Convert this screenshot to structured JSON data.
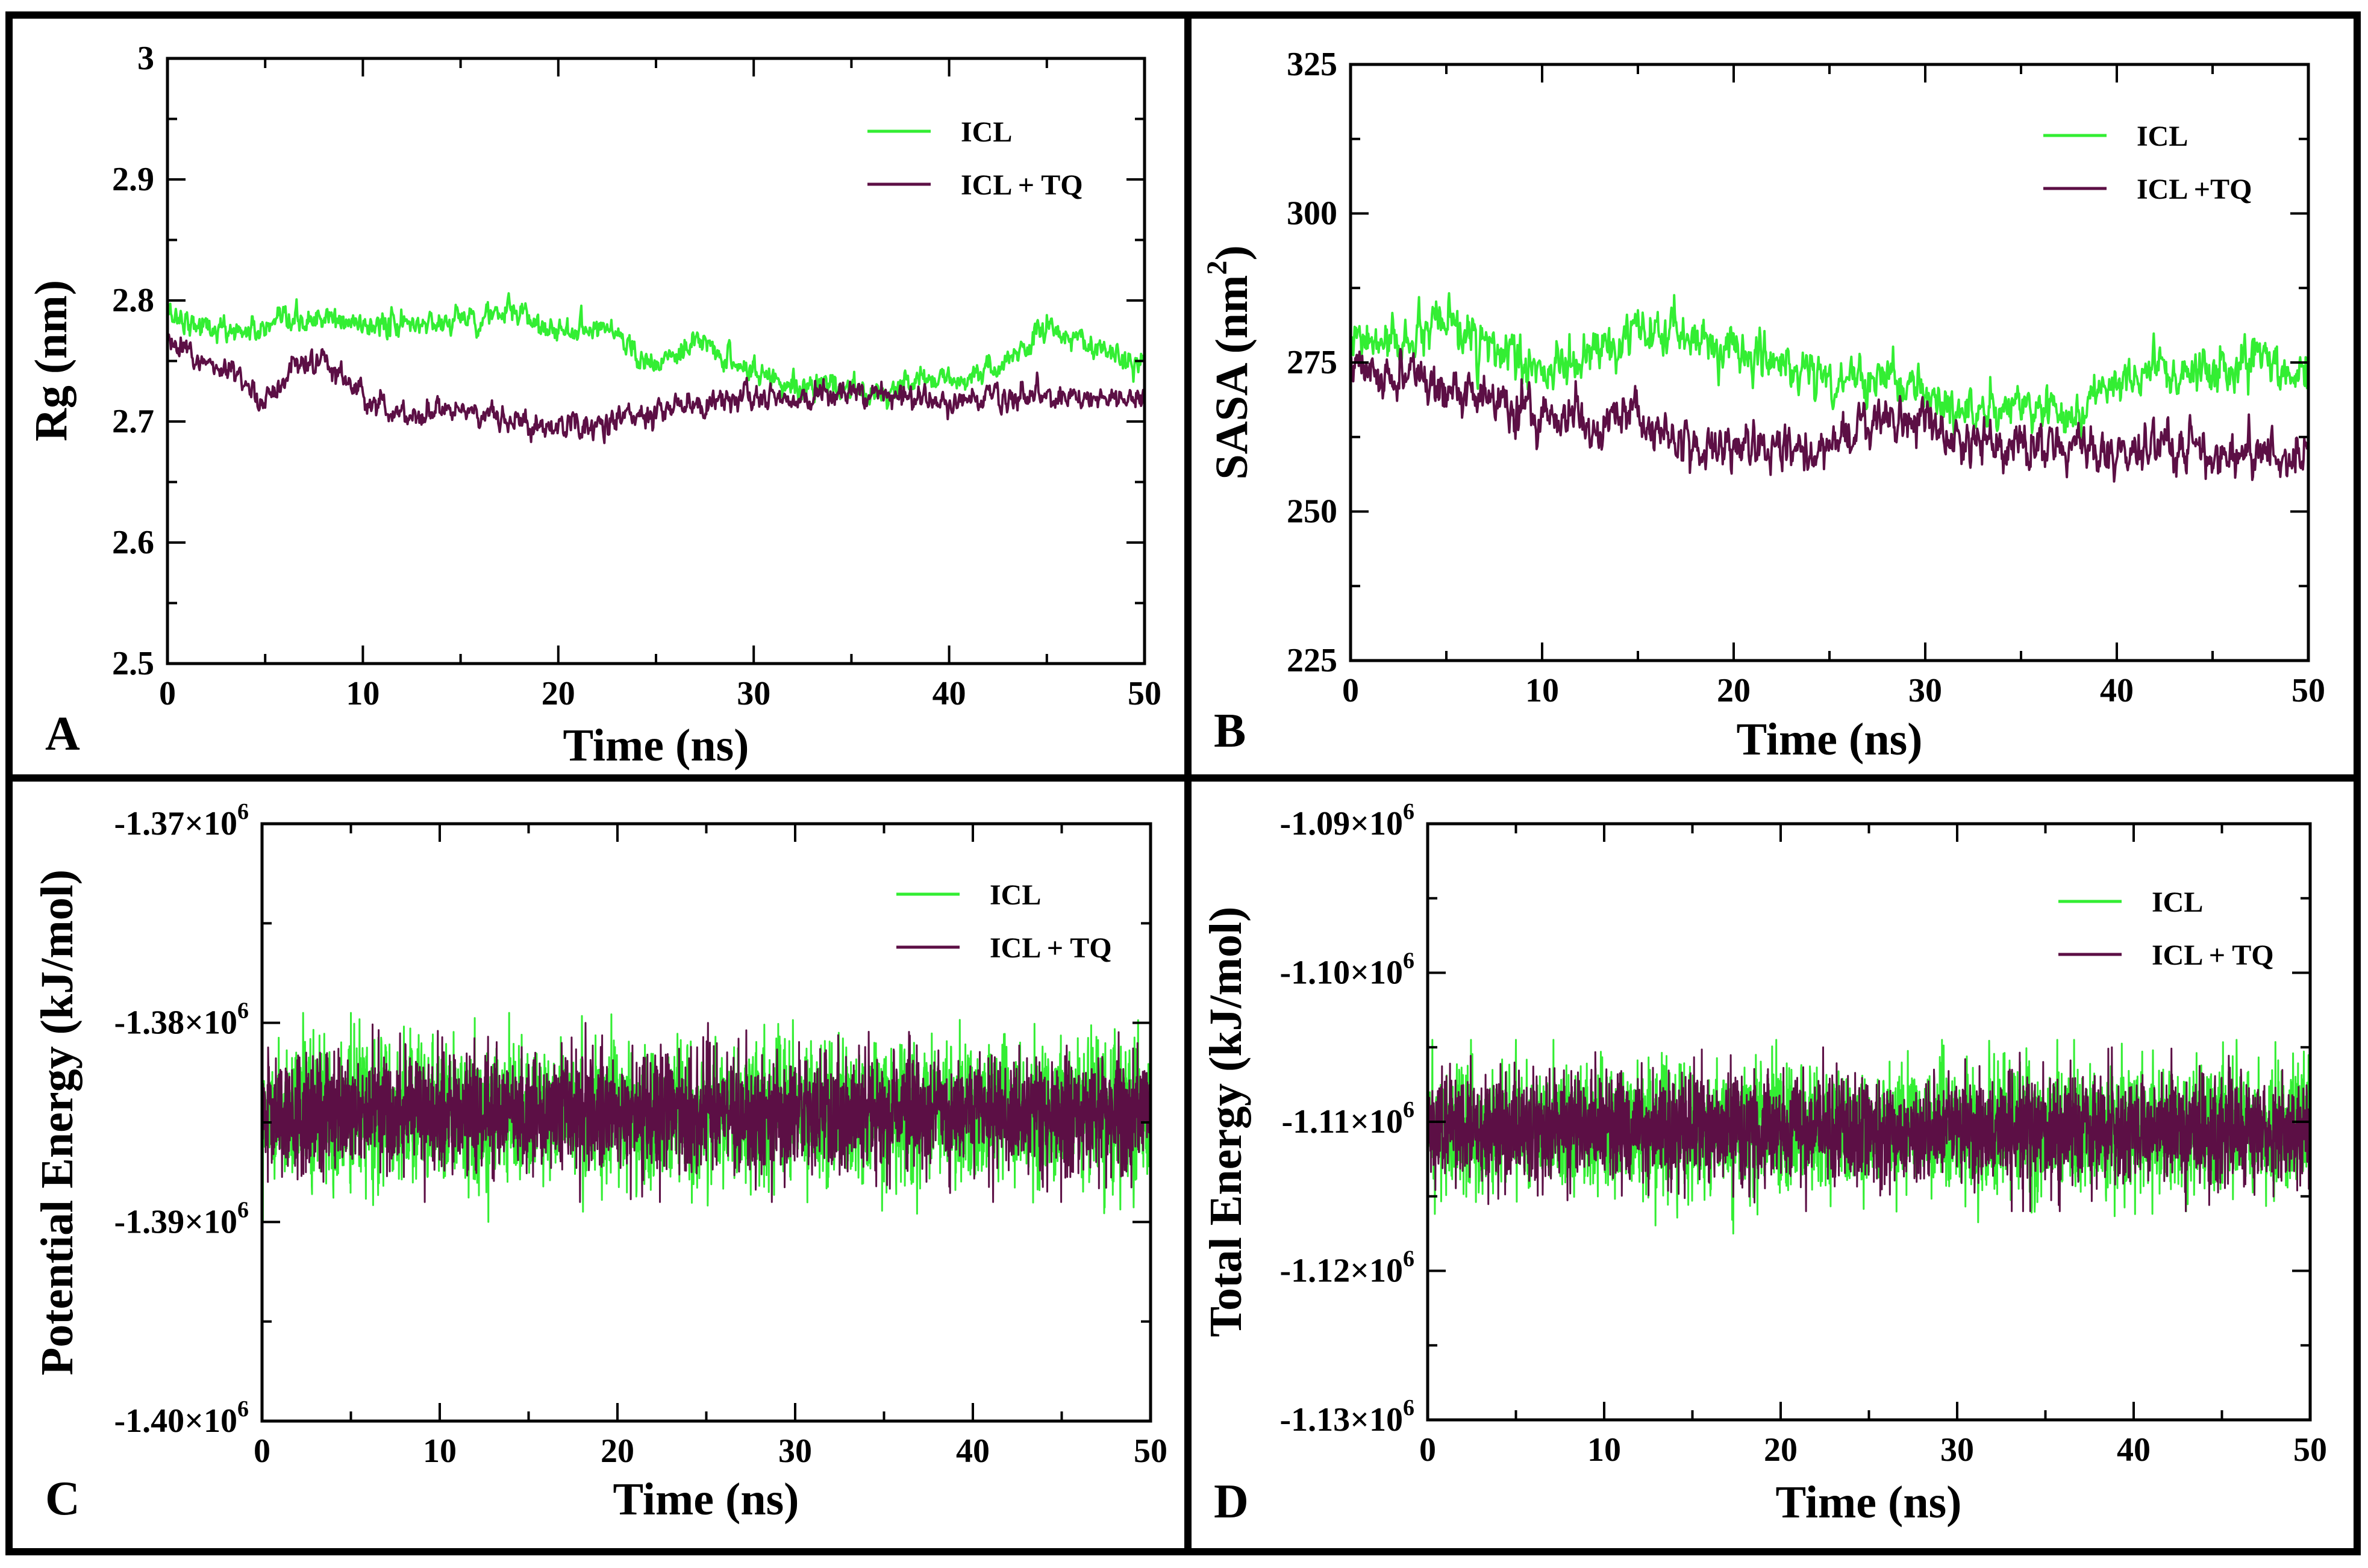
{
  "figure": {
    "colors": {
      "icl": "#33ee33",
      "icl_tq": "#5c0f45",
      "axes": "#000000"
    }
  },
  "chart_data": [
    {
      "panel": "A",
      "type": "line",
      "xlabel": "Time (ns)",
      "ylabel": "Rg (nm)",
      "xlim": [
        0,
        50
      ],
      "ylim": [
        2.5,
        3.0
      ],
      "x_ticks": [
        0,
        10,
        20,
        30,
        40,
        50
      ],
      "x_tick_labels": [
        "0",
        "10",
        "20",
        "30",
        "40",
        "50"
      ],
      "y_ticks": [
        2.5,
        2.6,
        2.7,
        2.8,
        2.9,
        3.0
      ],
      "y_tick_labels": [
        "2.5",
        "2.6",
        "2.7",
        "2.8",
        "2.9",
        "3"
      ],
      "legend": [
        "ICL",
        "ICL + TQ"
      ],
      "legend_position": "top-right",
      "series": [
        {
          "name": "ICL",
          "color": "#33ee33",
          "x": [
            0,
            2.5,
            5,
            7.5,
            10,
            12.5,
            15,
            17.5,
            20,
            22.5,
            25,
            27.5,
            30,
            32.5,
            35,
            37.5,
            40,
            42.5,
            45,
            47.5,
            50
          ],
          "y": [
            2.79,
            2.775,
            2.775,
            2.785,
            2.78,
            2.78,
            2.785,
            2.79,
            2.775,
            2.78,
            2.745,
            2.765,
            2.74,
            2.73,
            2.725,
            2.73,
            2.735,
            2.74,
            2.78,
            2.76,
            2.745
          ]
        },
        {
          "name": "ICL + TQ",
          "color": "#5c0f45",
          "x": [
            0,
            2.5,
            5,
            7.5,
            10,
            12.5,
            15,
            17.5,
            20,
            22.5,
            25,
            27.5,
            30,
            32.5,
            35,
            37.5,
            40,
            42.5,
            45,
            47.5,
            50
          ],
          "y": [
            2.765,
            2.745,
            2.72,
            2.755,
            2.72,
            2.705,
            2.71,
            2.7,
            2.695,
            2.7,
            2.71,
            2.715,
            2.72,
            2.72,
            2.725,
            2.72,
            2.715,
            2.72,
            2.72,
            2.72,
            2.72
          ]
        }
      ]
    },
    {
      "panel": "B",
      "type": "line",
      "xlabel": "Time (ns)",
      "ylabel": "SASA (nm",
      "ylabel_sup": "2",
      "ylabel_close": ")",
      "xlim": [
        0,
        50
      ],
      "ylim": [
        225,
        325
      ],
      "x_ticks": [
        0,
        10,
        20,
        30,
        40,
        50
      ],
      "x_tick_labels": [
        "0",
        "10",
        "20",
        "30",
        "40",
        "50"
      ],
      "y_ticks": [
        225,
        250,
        275,
        300,
        325
      ],
      "y_tick_labels": [
        "225",
        "250",
        "275",
        "300",
        "325"
      ],
      "legend": [
        "ICL",
        "ICL +TQ"
      ],
      "legend_position": "top-right",
      "series": [
        {
          "name": "ICL",
          "color": "#33ee33",
          "x": [
            0,
            2.5,
            5,
            7.5,
            10,
            12.5,
            15,
            17.5,
            20,
            22.5,
            25,
            27.5,
            30,
            32.5,
            35,
            37.5,
            40,
            42.5,
            45,
            47.5,
            50
          ],
          "y": [
            278,
            278,
            281,
            277,
            273,
            276,
            279,
            280,
            277,
            275,
            272,
            273,
            270,
            266,
            268,
            266,
            272,
            273,
            273,
            276,
            272
          ]
        },
        {
          "name": "ICL +TQ",
          "color": "#5c0f45",
          "x": [
            0,
            2.5,
            5,
            7.5,
            10,
            12.5,
            15,
            17.5,
            20,
            22.5,
            25,
            27.5,
            30,
            32.5,
            35,
            37.5,
            40,
            42.5,
            45,
            47.5,
            50
          ],
          "y": [
            275,
            272,
            272,
            268,
            266,
            265,
            266,
            261,
            260,
            261,
            260,
            265,
            265,
            260,
            261,
            262,
            260,
            261,
            260,
            260,
            259
          ]
        }
      ]
    },
    {
      "panel": "C",
      "type": "line",
      "xlabel": "Time (ns)",
      "ylabel": "Potential Energy (kJ/mol)",
      "xlim": [
        0,
        50
      ],
      "ylim": [
        -1400000,
        -1370000
      ],
      "x_ticks": [
        0,
        10,
        20,
        30,
        40,
        50
      ],
      "x_tick_labels": [
        "0",
        "10",
        "20",
        "30",
        "40",
        "50"
      ],
      "y_ticks": [
        -1400000,
        -1390000,
        -1380000,
        -1370000
      ],
      "y_tick_labels": [
        "-1.40×10",
        "-1.39×10",
        "-1.38×10",
        "-1.37×10"
      ],
      "y_tick_exponent": "6",
      "legend": [
        "ICL",
        "ICL + TQ"
      ],
      "legend_position": "top-right",
      "series": [
        {
          "name": "ICL",
          "color": "#33ee33",
          "mean": -1384500,
          "range": [
            -1390000,
            -1379500
          ]
        },
        {
          "name": "ICL + TQ",
          "color": "#5c0f45",
          "mean": -1384500,
          "range": [
            -1389000,
            -1380000
          ]
        }
      ]
    },
    {
      "panel": "D",
      "type": "line",
      "xlabel": "Time (ns)",
      "ylabel": "Total Energy (kJ/mol)",
      "xlim": [
        0,
        50
      ],
      "ylim": [
        -1130000,
        -1090000
      ],
      "x_ticks": [
        0,
        10,
        20,
        30,
        40,
        50
      ],
      "x_tick_labels": [
        "0",
        "10",
        "20",
        "30",
        "40",
        "50"
      ],
      "y_ticks": [
        -1130000,
        -1120000,
        -1110000,
        -1100000,
        -1090000
      ],
      "y_tick_labels": [
        "-1.13×10",
        "-1.12×10",
        "-1.11×10",
        "-1.10×10",
        "-1.09×10"
      ],
      "y_tick_exponent": "6",
      "legend": [
        "ICL",
        "ICL + TQ"
      ],
      "legend_position": "top-right",
      "series": [
        {
          "name": "ICL",
          "color": "#33ee33",
          "mean": -1110500,
          "range": [
            -1117500,
            -1104500
          ]
        },
        {
          "name": "ICL + TQ",
          "color": "#5c0f45",
          "mean": -1110500,
          "range": [
            -1116000,
            -1105000
          ]
        }
      ]
    }
  ]
}
